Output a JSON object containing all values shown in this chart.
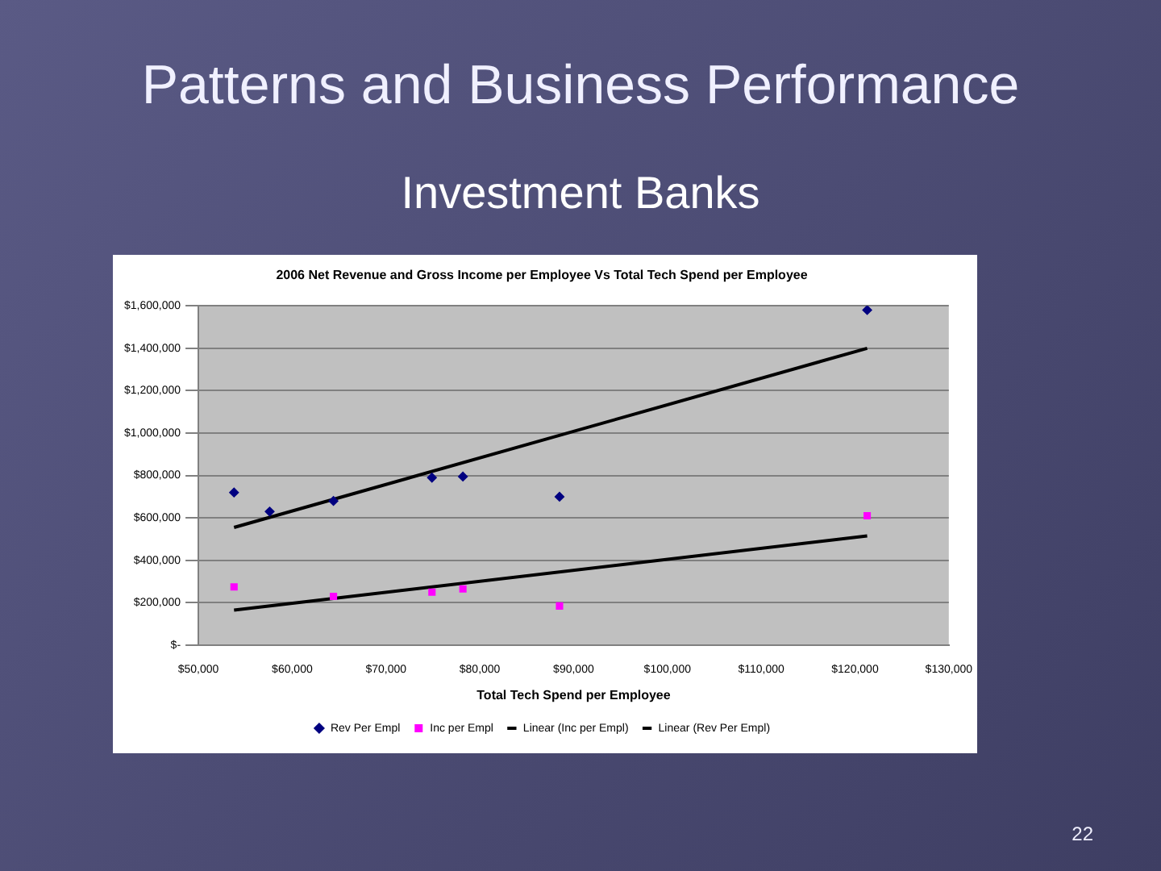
{
  "chart_data": {
    "type": "scatter",
    "title": "2006 Net Revenue and Gross Income per Employee Vs Total Tech Spend per Employee",
    "xlabel": "Total Tech Spend per Employee",
    "annotations": [
      "Patterns and Business Performance",
      "Investment Banks",
      "22"
    ],
    "series": [
      {
        "name": "Rev Per Empl",
        "type": "scatter",
        "marker": "diamond",
        "color": "#000080",
        "x": [
          53800,
          57600,
          64400,
          74900,
          78200,
          88500,
          121300
        ],
        "values": [
          720000,
          630000,
          680000,
          790000,
          795000,
          700000,
          1580000
        ]
      },
      {
        "name": "Inc per Empl",
        "type": "scatter",
        "marker": "square",
        "color": "#ff00ff",
        "x": [
          53800,
          64400,
          74900,
          78200,
          88500,
          121300
        ],
        "values": [
          275000,
          230000,
          250000,
          265000,
          185000,
          610000
        ]
      },
      {
        "name": "Linear (Inc per Empl)",
        "type": "line",
        "marker": "none",
        "line_style": "solid",
        "color": "#000000",
        "x": [
          53800,
          121300
        ],
        "values": [
          165000,
          515000
        ]
      },
      {
        "name": "Linear (Rev Per Empl)",
        "type": "line",
        "marker": "none",
        "line_style": "solid",
        "color": "#000000",
        "x": [
          53800,
          121300
        ],
        "values": [
          555000,
          1400000
        ]
      }
    ],
    "xlim": [
      50000,
      130000
    ],
    "xticks": [
      {
        "value": 50000,
        "label": "$50,000"
      },
      {
        "value": 60000,
        "label": "$60,000"
      },
      {
        "value": 70000,
        "label": "$70,000"
      },
      {
        "value": 80000,
        "label": "$80,000"
      },
      {
        "value": 90000,
        "label": "$90,000"
      },
      {
        "value": 100000,
        "label": "$100,000"
      },
      {
        "value": 110000,
        "label": "$110,000"
      },
      {
        "value": 120000,
        "label": "$120,000"
      },
      {
        "value": 130000,
        "label": "$130,000"
      }
    ],
    "ylim": [
      0,
      1600000
    ],
    "yticks": [
      {
        "value": 0,
        "label": "$-"
      },
      {
        "value": 200000,
        "label": "$200,000"
      },
      {
        "value": 400000,
        "label": "$400,000"
      },
      {
        "value": 600000,
        "label": "$600,000"
      },
      {
        "value": 800000,
        "label": "$800,000"
      },
      {
        "value": 1000000,
        "label": "$1,000,000"
      },
      {
        "value": 1200000,
        "label": "$1,200,000"
      },
      {
        "value": 1400000,
        "label": "$1,400,000"
      },
      {
        "value": 1600000,
        "label": "$1,600,000"
      }
    ],
    "grid": "y",
    "legend": "bottom"
  }
}
